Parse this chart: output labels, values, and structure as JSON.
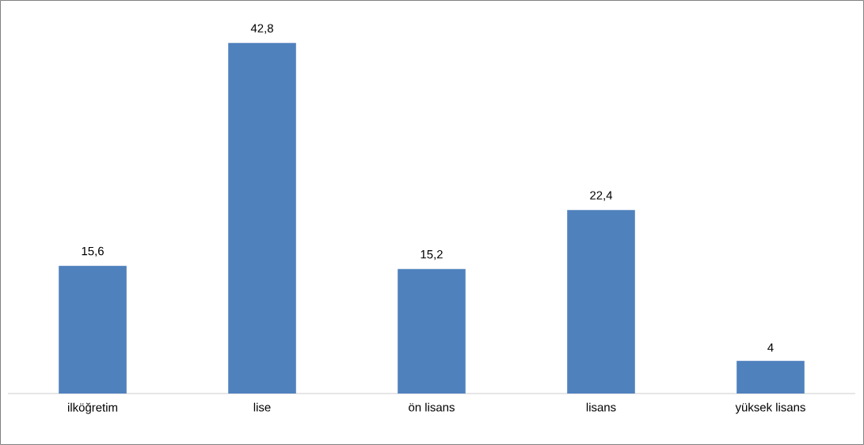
{
  "chart_data": {
    "type": "bar",
    "categories": [
      "ilköğretim",
      "lise",
      "ön lisans",
      "lisans",
      "yüksek lisans"
    ],
    "values": [
      15.6,
      42.8,
      15.2,
      22.4,
      4
    ],
    "value_labels": [
      "15,6",
      "42,8",
      "15,2",
      "22,4",
      "4"
    ],
    "color": "#4f81bd"
  }
}
